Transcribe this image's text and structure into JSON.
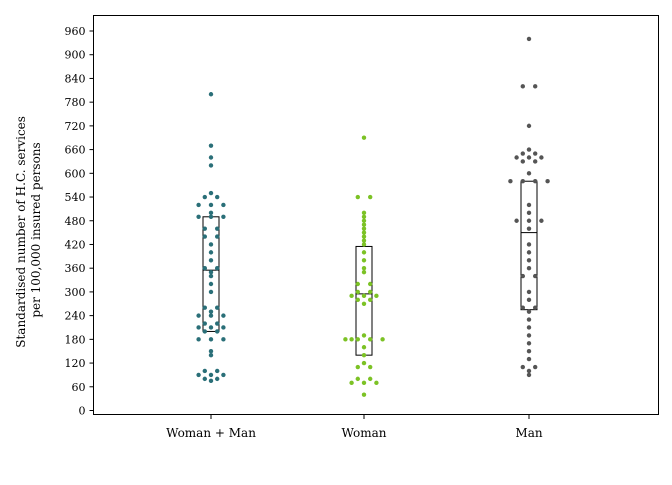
{
  "chart_data": {
    "type": "scatter",
    "subtype": "dot-strip with box",
    "ylabel_lines": [
      "Standardised number of H.C. services",
      "per 100,000 insured persons"
    ],
    "xlabel": "",
    "ylim": [
      0,
      1000
    ],
    "yticks": [
      0,
      60,
      120,
      180,
      240,
      300,
      360,
      420,
      480,
      540,
      600,
      660,
      720,
      780,
      840,
      900,
      960
    ],
    "grid": false,
    "categories": [
      "Woman + Man",
      "Woman",
      "Man"
    ],
    "series": [
      {
        "category": "Woman + Man",
        "color": "#2a6f78",
        "box": {
          "q1": 200,
          "median": 355,
          "q3": 490
        },
        "points": [
          {
            "y": 800,
            "off": 0
          },
          {
            "y": 670,
            "off": 0
          },
          {
            "y": 640,
            "off": 0
          },
          {
            "y": 620,
            "off": 0
          },
          {
            "y": 550,
            "off": 0
          },
          {
            "y": 540,
            "off": -1
          },
          {
            "y": 540,
            "off": 1
          },
          {
            "y": 520,
            "off": -2
          },
          {
            "y": 520,
            "off": 0
          },
          {
            "y": 520,
            "off": 2
          },
          {
            "y": 500,
            "off": 0
          },
          {
            "y": 490,
            "off": -2
          },
          {
            "y": 490,
            "off": 0
          },
          {
            "y": 490,
            "off": 2
          },
          {
            "y": 460,
            "off": -1
          },
          {
            "y": 460,
            "off": 1
          },
          {
            "y": 440,
            "off": -1
          },
          {
            "y": 440,
            "off": 1
          },
          {
            "y": 420,
            "off": 0
          },
          {
            "y": 400,
            "off": 0
          },
          {
            "y": 380,
            "off": 0
          },
          {
            "y": 360,
            "off": -1
          },
          {
            "y": 360,
            "off": 1
          },
          {
            "y": 350,
            "off": 0
          },
          {
            "y": 340,
            "off": 0
          },
          {
            "y": 320,
            "off": 0
          },
          {
            "y": 300,
            "off": 0
          },
          {
            "y": 260,
            "off": -1
          },
          {
            "y": 260,
            "off": 1
          },
          {
            "y": 250,
            "off": 0
          },
          {
            "y": 240,
            "off": -2
          },
          {
            "y": 240,
            "off": 0
          },
          {
            "y": 240,
            "off": 2
          },
          {
            "y": 220,
            "off": -1
          },
          {
            "y": 220,
            "off": 1
          },
          {
            "y": 210,
            "off": -2
          },
          {
            "y": 210,
            "off": 0
          },
          {
            "y": 210,
            "off": 2
          },
          {
            "y": 200,
            "off": -1
          },
          {
            "y": 200,
            "off": 1
          },
          {
            "y": 180,
            "off": -2
          },
          {
            "y": 180,
            "off": 0
          },
          {
            "y": 180,
            "off": 2
          },
          {
            "y": 150,
            "off": 0
          },
          {
            "y": 140,
            "off": 0
          },
          {
            "y": 100,
            "off": -1
          },
          {
            "y": 100,
            "off": 1
          },
          {
            "y": 90,
            "off": -2
          },
          {
            "y": 90,
            "off": 0
          },
          {
            "y": 90,
            "off": 2
          },
          {
            "y": 80,
            "off": -1
          },
          {
            "y": 80,
            "off": 1
          },
          {
            "y": 75,
            "off": 0
          }
        ]
      },
      {
        "category": "Woman",
        "color": "#7cc225",
        "box": {
          "q1": 140,
          "median": 295,
          "q3": 415
        },
        "points": [
          {
            "y": 690,
            "off": 0
          },
          {
            "y": 540,
            "off": -1
          },
          {
            "y": 540,
            "off": 1
          },
          {
            "y": 500,
            "off": 0
          },
          {
            "y": 490,
            "off": 0
          },
          {
            "y": 480,
            "off": 0
          },
          {
            "y": 470,
            "off": 0
          },
          {
            "y": 460,
            "off": 0
          },
          {
            "y": 450,
            "off": 0
          },
          {
            "y": 440,
            "off": 0
          },
          {
            "y": 430,
            "off": 0
          },
          {
            "y": 420,
            "off": 0
          },
          {
            "y": 400,
            "off": 0
          },
          {
            "y": 380,
            "off": 0
          },
          {
            "y": 360,
            "off": 0
          },
          {
            "y": 350,
            "off": 0
          },
          {
            "y": 320,
            "off": -1
          },
          {
            "y": 320,
            "off": 1
          },
          {
            "y": 300,
            "off": -1
          },
          {
            "y": 300,
            "off": 1
          },
          {
            "y": 290,
            "off": -2
          },
          {
            "y": 290,
            "off": 0
          },
          {
            "y": 290,
            "off": 2
          },
          {
            "y": 280,
            "off": -1
          },
          {
            "y": 280,
            "off": 1
          },
          {
            "y": 270,
            "off": 0
          },
          {
            "y": 190,
            "off": 0
          },
          {
            "y": 180,
            "off": -3
          },
          {
            "y": 180,
            "off": -2
          },
          {
            "y": 180,
            "off": -1
          },
          {
            "y": 180,
            "off": 1
          },
          {
            "y": 180,
            "off": 3
          },
          {
            "y": 160,
            "off": 0
          },
          {
            "y": 140,
            "off": 0
          },
          {
            "y": 120,
            "off": 0
          },
          {
            "y": 110,
            "off": -1
          },
          {
            "y": 110,
            "off": 1
          },
          {
            "y": 80,
            "off": -1
          },
          {
            "y": 80,
            "off": 1
          },
          {
            "y": 70,
            "off": -2
          },
          {
            "y": 70,
            "off": 0
          },
          {
            "y": 70,
            "off": 2
          },
          {
            "y": 40,
            "off": 0
          }
        ]
      },
      {
        "category": "Man",
        "color": "#555555",
        "box": {
          "q1": 255,
          "median": 450,
          "q3": 580
        },
        "points": [
          {
            "y": 940,
            "off": 0
          },
          {
            "y": 820,
            "off": -1
          },
          {
            "y": 820,
            "off": 1
          },
          {
            "y": 720,
            "off": 0
          },
          {
            "y": 660,
            "off": 0
          },
          {
            "y": 650,
            "off": -1
          },
          {
            "y": 650,
            "off": 1
          },
          {
            "y": 640,
            "off": -2
          },
          {
            "y": 640,
            "off": 0
          },
          {
            "y": 640,
            "off": 2
          },
          {
            "y": 630,
            "off": -1
          },
          {
            "y": 630,
            "off": 1
          },
          {
            "y": 600,
            "off": 0
          },
          {
            "y": 580,
            "off": -3
          },
          {
            "y": 580,
            "off": -1
          },
          {
            "y": 580,
            "off": 1
          },
          {
            "y": 580,
            "off": 3
          },
          {
            "y": 520,
            "off": 0
          },
          {
            "y": 500,
            "off": 0
          },
          {
            "y": 480,
            "off": -2
          },
          {
            "y": 480,
            "off": 0
          },
          {
            "y": 480,
            "off": 2
          },
          {
            "y": 460,
            "off": 0
          },
          {
            "y": 420,
            "off": 0
          },
          {
            "y": 400,
            "off": 0
          },
          {
            "y": 380,
            "off": 0
          },
          {
            "y": 360,
            "off": 0
          },
          {
            "y": 340,
            "off": -1
          },
          {
            "y": 340,
            "off": 1
          },
          {
            "y": 300,
            "off": 0
          },
          {
            "y": 280,
            "off": 0
          },
          {
            "y": 260,
            "off": -1
          },
          {
            "y": 260,
            "off": 1
          },
          {
            "y": 250,
            "off": 0
          },
          {
            "y": 230,
            "off": 0
          },
          {
            "y": 210,
            "off": 0
          },
          {
            "y": 190,
            "off": 0
          },
          {
            "y": 170,
            "off": 0
          },
          {
            "y": 150,
            "off": 0
          },
          {
            "y": 130,
            "off": 0
          },
          {
            "y": 110,
            "off": -1
          },
          {
            "y": 110,
            "off": 1
          },
          {
            "y": 100,
            "off": 0
          },
          {
            "y": 90,
            "off": 0
          }
        ]
      }
    ]
  }
}
